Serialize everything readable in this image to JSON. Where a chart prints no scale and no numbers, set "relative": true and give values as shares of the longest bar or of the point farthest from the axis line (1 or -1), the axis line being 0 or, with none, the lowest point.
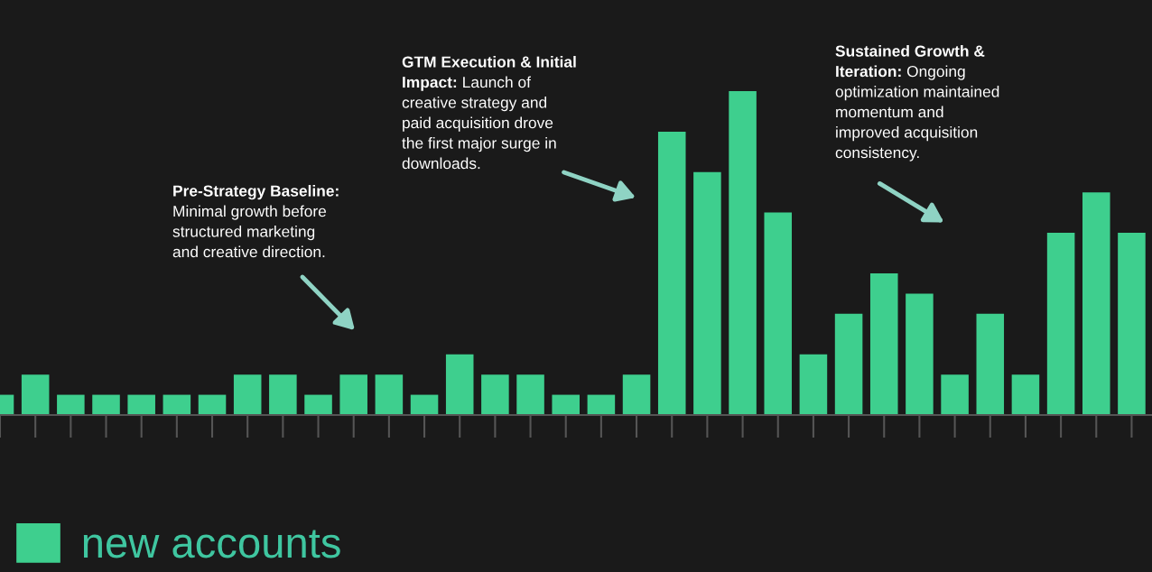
{
  "chart_data": {
    "type": "bar",
    "relative": true,
    "categories": [
      null,
      null,
      null,
      null,
      null,
      null,
      null,
      null,
      null,
      null,
      null,
      null,
      null,
      null,
      null,
      null,
      null,
      null,
      null,
      null,
      null,
      null,
      null,
      null,
      null,
      null,
      null,
      null,
      null,
      null,
      null,
      null,
      null
    ],
    "series": [
      {
        "name": "new accounts",
        "color": "#3ecf8e",
        "values": [
          0.0625,
          0.125,
          0.0625,
          0.0625,
          0.0625,
          0.0625,
          0.0625,
          0.125,
          0.125,
          0.0625,
          0.125,
          0.125,
          0.0625,
          0.1875,
          0.125,
          0.125,
          0.0625,
          0.0625,
          0.125,
          0.875,
          0.75,
          1,
          0.625,
          0.1875,
          0.3125,
          0.4375,
          0.375,
          0.125,
          0.3125,
          0.125,
          0.5625,
          0.6875,
          0.5625
        ]
      }
    ],
    "annotations": [
      "Pre-Strategy Baseline:\nMinimal growth before\nstructured marketing\nand creative direction.",
      "GTM Execution & Initial\nImpact: Launch of\ncreative strategy and\npaid acquisition drove\nthe first major surge in\ndownloads.",
      "Sustained Growth &\nIteration: Ongoing\noptimization maintained\nmomentum and\nimproved acquisition\nconsistency."
    ],
    "legend": "bottom left",
    "grid": false
  }
}
